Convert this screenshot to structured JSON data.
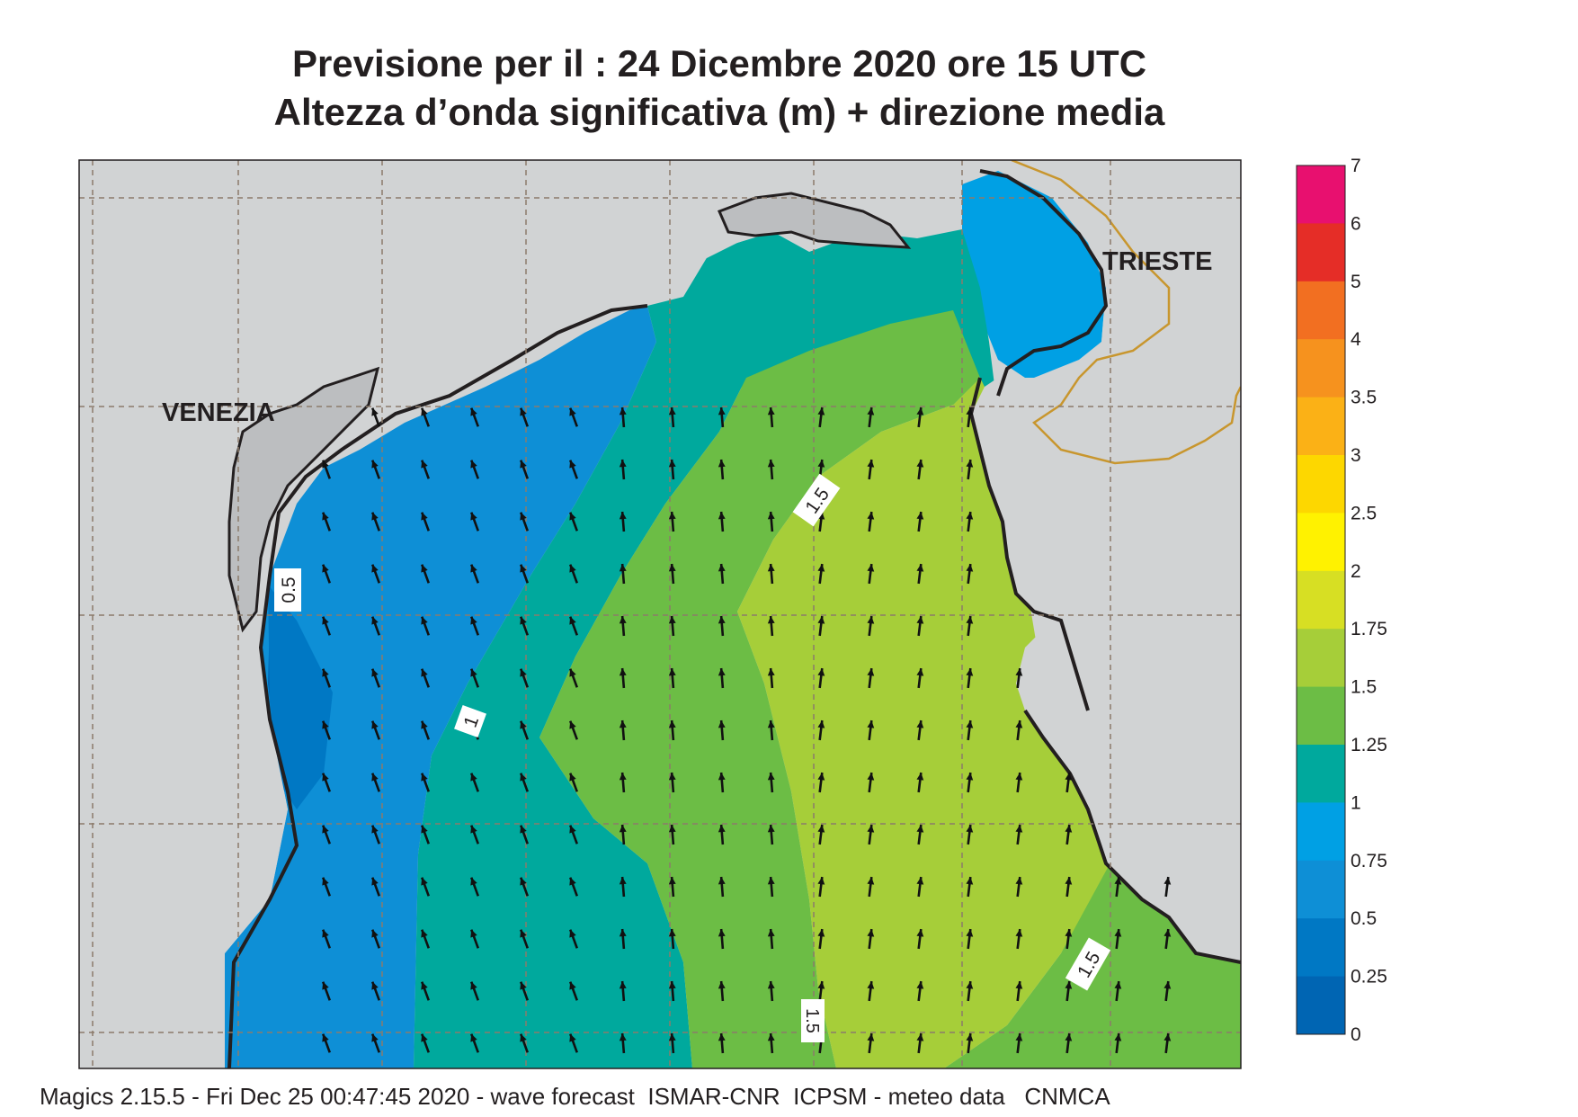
{
  "title": {
    "line1": "Previsione per il  :  24 Dicembre  2020   ore 15 UTC",
    "line2": "Altezza d’onda significativa (m) + direzione media"
  },
  "map": {
    "cities": [
      "VENEZIA",
      "TRIESTE"
    ],
    "contour_labels": [
      "0.5",
      "1",
      "1.5",
      "1.5",
      "1.5"
    ],
    "arrow_direction": "north / north-north-west",
    "land_color": "#d1d3d4",
    "coast_color": "#231f20",
    "border_color": "#c8962e",
    "grid_color": "#8c7b6b"
  },
  "colorbar": {
    "labels": [
      "7",
      "6",
      "5",
      "4",
      "3.5",
      "3",
      "2.5",
      "2",
      "1.75",
      "1.5",
      "1.25",
      "1",
      "0.75",
      "0.5",
      "0.25",
      "0"
    ],
    "colors": [
      "#e8106f",
      "#e52d27",
      "#f26f21",
      "#f6921e",
      "#fbb116",
      "#fdd700",
      "#fff200",
      "#d7df23",
      "#a6ce39",
      "#6cbd45",
      "#00a99d",
      "#00a0e4",
      "#0e8fd6",
      "#0078c4",
      "#0065b3"
    ]
  },
  "footer": "Magics 2.15.5 - Fri Dec 25 00:47:45 2020 - wave forecast  ISMAR-CNR  ICPSM - meteo data   CNMCA"
}
